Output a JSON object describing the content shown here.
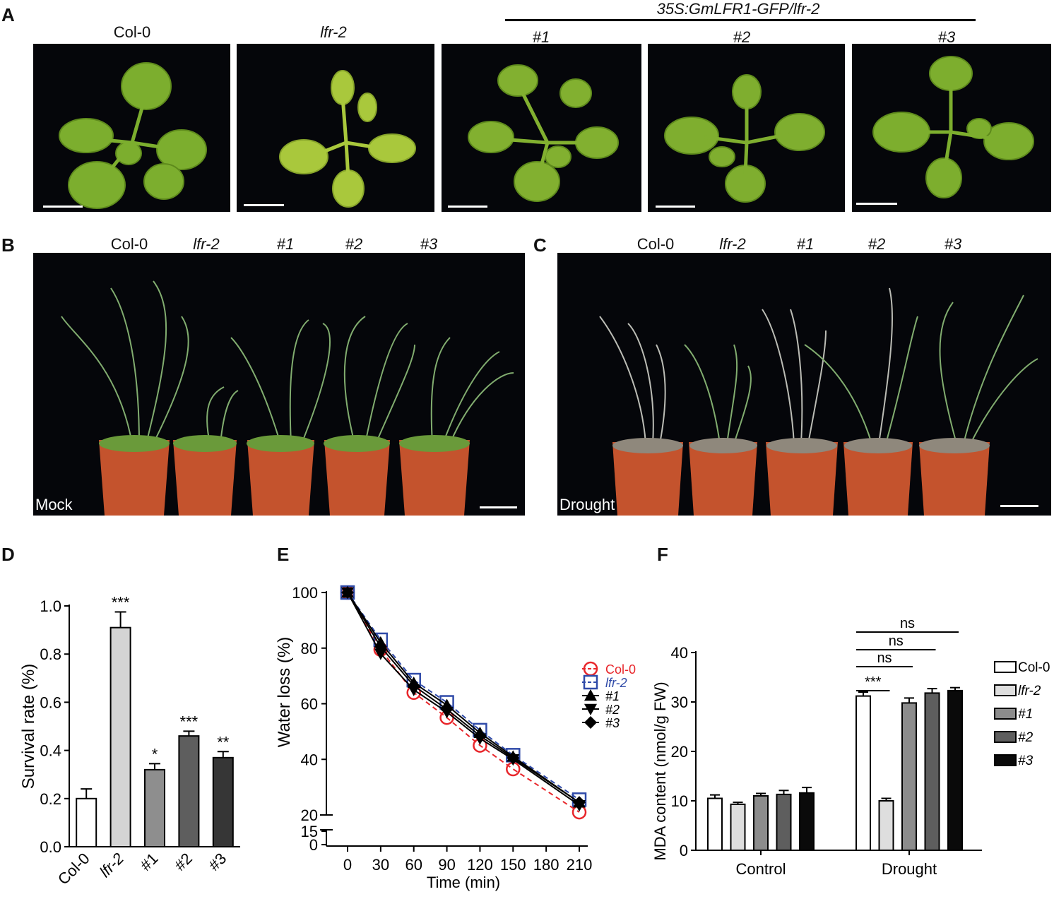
{
  "panels": {
    "A": {
      "letter": "A",
      "transgene_label": "35S:GmLFR1-GFP/lfr-2",
      "genotypes": [
        "Col-0",
        "lfr-2",
        "#1",
        "#2",
        "#3"
      ]
    },
    "B": {
      "letter": "B",
      "genotypes": [
        "Col-0",
        "lfr-2",
        "#1",
        "#2",
        "#3"
      ],
      "condition": "Mock"
    },
    "C": {
      "letter": "C",
      "genotypes": [
        "Col-0",
        "lfr-2",
        "#1",
        "#2",
        "#3"
      ],
      "condition": "Drought"
    },
    "D": {
      "letter": "D"
    },
    "E": {
      "letter": "E"
    },
    "F": {
      "letter": "F"
    }
  },
  "colors": {
    "photo_bg": "#05060a",
    "leaf": "#7cae2e",
    "pot": "#c4532d",
    "col0_line": "#e8262b",
    "lfr2_line": "#2f4aa8"
  },
  "chart_data": [
    {
      "id": "D",
      "type": "bar",
      "ylabel": "Survival rate (%)",
      "categories": [
        "Col-0",
        "lfr-2",
        "#1",
        "#2",
        "#3"
      ],
      "values": [
        0.2,
        0.91,
        0.32,
        0.46,
        0.37
      ],
      "errors": [
        0.04,
        0.065,
        0.025,
        0.02,
        0.025
      ],
      "significance": [
        "",
        "***",
        "*",
        "***",
        "**"
      ],
      "fills": [
        "#ffffff",
        "#d4d4d4",
        "#8e8e8e",
        "#5e5e5e",
        "#363636"
      ],
      "ylim": [
        0,
        1.0
      ],
      "yticks": [
        "0.0",
        "0.2",
        "0.4",
        "0.6",
        "0.8",
        "1.0"
      ]
    },
    {
      "id": "E",
      "type": "line",
      "xlabel": "Time (min)",
      "ylabel": "Water loss (%)",
      "x": [
        0,
        30,
        60,
        90,
        120,
        150,
        210
      ],
      "xticks": [
        "0",
        "30",
        "60",
        "90",
        "120",
        "150",
        "180",
        "210"
      ],
      "yticks": [
        "0",
        "15",
        "20",
        "40",
        "60",
        "80",
        "100"
      ],
      "axis_break": "between 15 and 20",
      "series": [
        {
          "name": "Col-0",
          "values": [
            100,
            79.5,
            64,
            55,
            45,
            36.5,
            21
          ],
          "marker": "circle-open",
          "color": "#e8262b",
          "dashed": true
        },
        {
          "name": "lfr-2",
          "values": [
            100,
            83,
            68.5,
            60.5,
            50.5,
            41.5,
            25.5
          ],
          "marker": "square-open",
          "color": "#2f4aa8",
          "dashed": true
        },
        {
          "name": "#1",
          "values": [
            100,
            82,
            67.5,
            59.5,
            49.5,
            41,
            24.5
          ],
          "marker": "triangle-up",
          "color": "#000000",
          "dashed": false
        },
        {
          "name": "#2",
          "values": [
            100,
            78,
            65,
            57,
            47.5,
            40,
            23.5
          ],
          "marker": "triangle-down",
          "color": "#000000",
          "dashed": false
        },
        {
          "name": "#3",
          "values": [
            100,
            80.5,
            66.5,
            58,
            48.5,
            40.5,
            24.5
          ],
          "marker": "diamond",
          "color": "#000000",
          "dashed": false
        }
      ]
    },
    {
      "id": "F",
      "type": "bar",
      "ylabel": "MDA content (nmol/g FW)",
      "categories": [
        "Control",
        "Drought"
      ],
      "ylim": [
        0,
        40
      ],
      "yticks": [
        "0",
        "10",
        "20",
        "30",
        "40"
      ],
      "series": [
        {
          "name": "Col-0",
          "values": [
            10.5,
            31.2
          ],
          "errors": [
            0.7,
            0.8
          ],
          "fill": "#ffffff"
        },
        {
          "name": "lfr-2",
          "values": [
            9.3,
            10.0
          ],
          "errors": [
            0.4,
            0.5
          ],
          "fill": "#dedede"
        },
        {
          "name": "#1",
          "values": [
            11.0,
            29.8
          ],
          "errors": [
            0.5,
            1.0
          ],
          "fill": "#8c8c8c"
        },
        {
          "name": "#2",
          "values": [
            11.3,
            31.8
          ],
          "errors": [
            0.8,
            0.9
          ],
          "fill": "#5e5e5e"
        },
        {
          "name": "#3",
          "values": [
            11.6,
            32.3
          ],
          "errors": [
            1.1,
            0.6
          ],
          "fill": "#0a0a0a"
        }
      ],
      "comparisons": [
        "***",
        "ns",
        "ns",
        "ns"
      ]
    }
  ]
}
